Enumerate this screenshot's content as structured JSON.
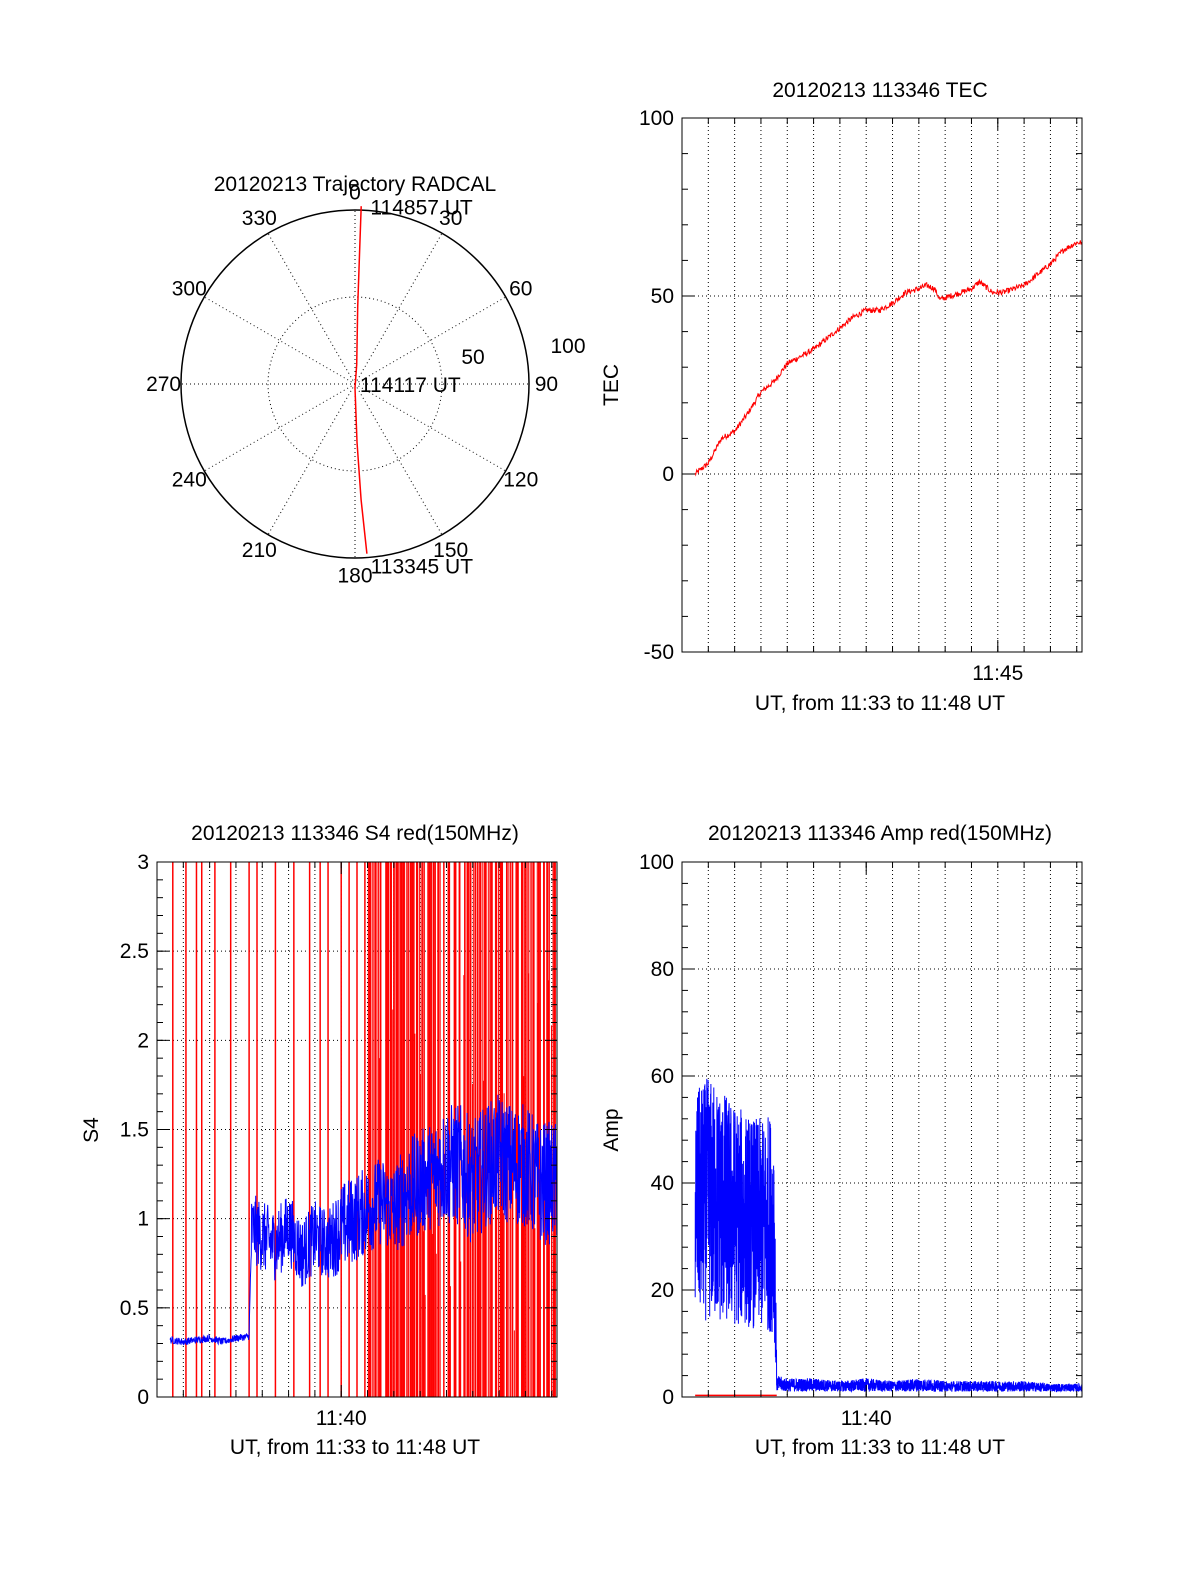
{
  "colors": {
    "red": "#ff0000",
    "blue": "#0000ff",
    "axis": "#000000",
    "grid": "#000000"
  },
  "chart_data": [
    {
      "id": "trajectory",
      "type": "scatter",
      "projection": "polar",
      "title": "20120213 Trajectory RADCAL",
      "azimuth_labels": [
        "0",
        "30",
        "60",
        "90",
        "120",
        "150",
        "180",
        "210",
        "240",
        "270",
        "300",
        "330"
      ],
      "zenith_rings": [
        50,
        100
      ],
      "zenith_ring_labels": [
        "50",
        "100"
      ],
      "grid": true,
      "series": [
        {
          "color": "red",
          "points": [
            {
              "az": 2,
              "zen": 92
            },
            {
              "az": 2,
              "zen": 70
            },
            {
              "az": 2,
              "zen": 40
            },
            {
              "az": 5,
              "zen": 10
            },
            {
              "az": 180,
              "zen": 2
            },
            {
              "az": 178,
              "zen": 30
            },
            {
              "az": 177,
              "zen": 60
            },
            {
              "az": 176,
              "zen": 88
            }
          ]
        }
      ],
      "annotations": [
        {
          "text": "114857 UT",
          "az": 4,
          "zen": 92
        },
        {
          "text": "114117 UT",
          "az": 90,
          "zen": 1
        },
        {
          "text": "113345 UT",
          "az": 176,
          "zen": 94
        }
      ]
    },
    {
      "id": "tec",
      "type": "line",
      "title": "20120213 113346 TEC",
      "ylabel": "TEC",
      "xlabel": "UT, from 11:33 to 11:48 UT",
      "ylim": [
        -50,
        100
      ],
      "yticks": [
        -50,
        0,
        50,
        100
      ],
      "xlim_min": [
        33,
        48.2
      ],
      "xticks": [
        {
          "min": 45,
          "label": "11:45"
        }
      ],
      "grid": true,
      "series": [
        {
          "color": "red",
          "x": [
            33.5,
            34.0,
            34.5,
            35.0,
            35.5,
            36.0,
            36.5,
            37.0,
            37.5,
            38.0,
            38.5,
            39.0,
            39.5,
            40.0,
            40.5,
            41.0,
            41.5,
            42.0,
            42.3,
            42.6,
            42.8,
            43.2,
            43.6,
            44.0,
            44.3,
            44.8,
            45.2,
            45.6,
            46.0,
            46.5,
            47.0,
            47.5,
            48.0,
            48.2
          ],
          "y": [
            0,
            3,
            10,
            12,
            17,
            23,
            26,
            31,
            33,
            35,
            38,
            41,
            44,
            46,
            46,
            48,
            51,
            52,
            53,
            52,
            49,
            50,
            51,
            52,
            54,
            51,
            51,
            52,
            53,
            56,
            59,
            63,
            65,
            65
          ]
        }
      ]
    },
    {
      "id": "s4",
      "type": "line",
      "title": "20120213 113346 S4 red(150MHz)",
      "ylabel": "S4",
      "xlabel": "UT, from 11:33 to 11:48 UT",
      "ylim": [
        0,
        3
      ],
      "yticks": [
        0,
        0.5,
        1,
        1.5,
        2,
        2.5,
        3
      ],
      "ytick_labels": [
        "0",
        "0.5",
        "1",
        "1.5",
        "2",
        "2.5",
        "3"
      ],
      "xlim_min": [
        33,
        48.2
      ],
      "xticks": [
        {
          "min": 40,
          "label": "11:40"
        }
      ],
      "grid": true,
      "series": [
        {
          "name": "red spikes",
          "color": "red",
          "spikes_x": [
            33.6,
            34.1,
            34.5,
            34.7,
            35.2,
            35.8,
            36.5,
            36.8,
            37.5,
            38.2,
            38.8,
            39.2,
            39.5,
            40.0,
            40.3,
            40.6,
            40.9,
            41.1,
            41.3,
            41.5,
            41.7,
            41.9,
            42.1,
            42.3,
            42.5,
            42.7,
            42.9,
            43.1,
            43.3,
            43.5,
            43.7,
            43.9,
            44.1,
            44.3,
            44.5,
            44.7,
            44.9,
            45.1,
            45.3,
            45.5,
            45.7,
            45.9,
            46.1,
            46.3,
            46.5,
            46.7,
            46.9,
            47.1,
            47.3,
            47.5,
            47.7,
            47.9,
            48.1
          ]
        },
        {
          "name": "blue",
          "color": "blue",
          "x": [
            33.5,
            34.0,
            34.5,
            35.0,
            35.5,
            36.0,
            36.5,
            36.6,
            37.0,
            37.5,
            38.0,
            38.5,
            39.0,
            39.5,
            40.0,
            40.5,
            41.0,
            41.5,
            42.0,
            42.5,
            43.0,
            43.5,
            44.0,
            44.5,
            45.0,
            45.5,
            46.0,
            46.5,
            47.0,
            47.5,
            48.2
          ],
          "y": [
            0.32,
            0.31,
            0.32,
            0.33,
            0.31,
            0.33,
            0.34,
            0.95,
            0.9,
            0.85,
            0.95,
            0.8,
            0.9,
            0.85,
            0.95,
            1.0,
            1.05,
            1.1,
            1.05,
            1.15,
            1.2,
            1.25,
            1.3,
            1.3,
            1.2,
            1.3,
            1.35,
            1.3,
            1.3,
            1.2,
            1.2
          ],
          "noise": [
            0.02,
            0.02,
            0.02,
            0.02,
            0.02,
            0.02,
            0.02,
            0.2,
            0.2,
            0.2,
            0.2,
            0.2,
            0.2,
            0.2,
            0.25,
            0.25,
            0.25,
            0.25,
            0.25,
            0.3,
            0.3,
            0.3,
            0.35,
            0.35,
            0.35,
            0.35,
            0.35,
            0.35,
            0.35,
            0.35,
            0.35
          ]
        }
      ]
    },
    {
      "id": "amp",
      "type": "line",
      "title": "20120213 113346 Amp red(150MHz)",
      "ylabel": "Amp",
      "xlabel": "UT, from 11:33 to 11:48 UT",
      "ylim": [
        0,
        100
      ],
      "yticks": [
        0,
        20,
        40,
        60,
        80,
        100
      ],
      "xlim_min": [
        33,
        48.2
      ],
      "xticks": [
        {
          "min": 40,
          "label": "11:40"
        }
      ],
      "grid": true,
      "series": [
        {
          "name": "blue envelope",
          "color": "blue",
          "x": [
            33.5,
            34.0,
            34.5,
            35.0,
            35.5,
            36.0,
            36.5,
            36.6,
            37.0,
            38.0,
            39.0,
            40.0,
            41.0,
            42.0,
            43.0,
            44.0,
            45.0,
            46.0,
            47.0,
            48.2
          ],
          "ymin": [
            15,
            14,
            13,
            13,
            13,
            12,
            12,
            1,
            1,
            1,
            1,
            1,
            1,
            1,
            1,
            1,
            1,
            1,
            1,
            1
          ],
          "ymax": [
            57,
            60,
            58,
            55,
            53,
            52,
            54,
            4,
            3.5,
            3.5,
            3,
            3.5,
            3,
            3.5,
            3,
            3,
            3,
            3,
            2.5,
            2.5
          ]
        },
        {
          "name": "red",
          "color": "red",
          "x": [
            33.5,
            36.6
          ],
          "y": [
            0.3,
            0.3
          ]
        }
      ]
    }
  ]
}
